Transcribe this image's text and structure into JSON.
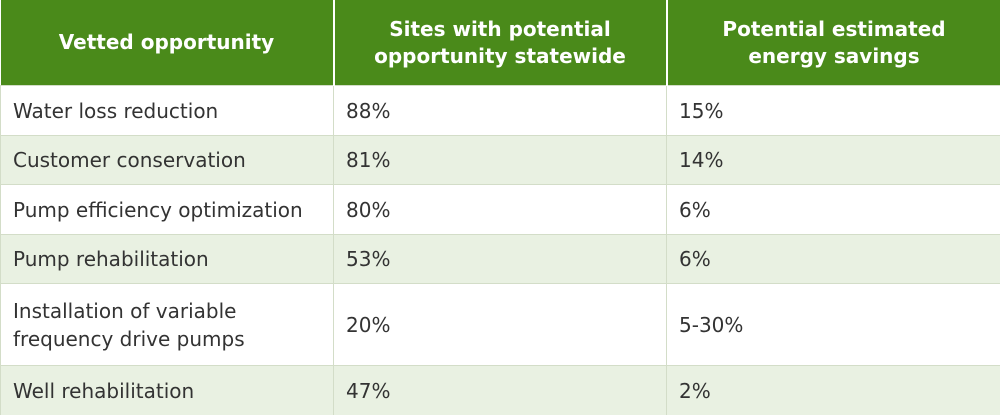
{
  "table": {
    "header": [
      "Vetted opportunity",
      "Sites with potential opportunity statewide",
      "Potential estimated energy savings"
    ],
    "rows": [
      [
        "Water loss reduction",
        "88%",
        "15%"
      ],
      [
        "Customer conservation",
        "81%",
        "14%"
      ],
      [
        "Pump efficiency optimization",
        "80%",
        "6%"
      ],
      [
        "Pump rehabilitation",
        "53%",
        "6%"
      ],
      [
        "Installation of variable frequency drive pumps",
        "20%",
        "5-30%"
      ],
      [
        "Well rehabilitation",
        "47%",
        "2%"
      ]
    ]
  }
}
